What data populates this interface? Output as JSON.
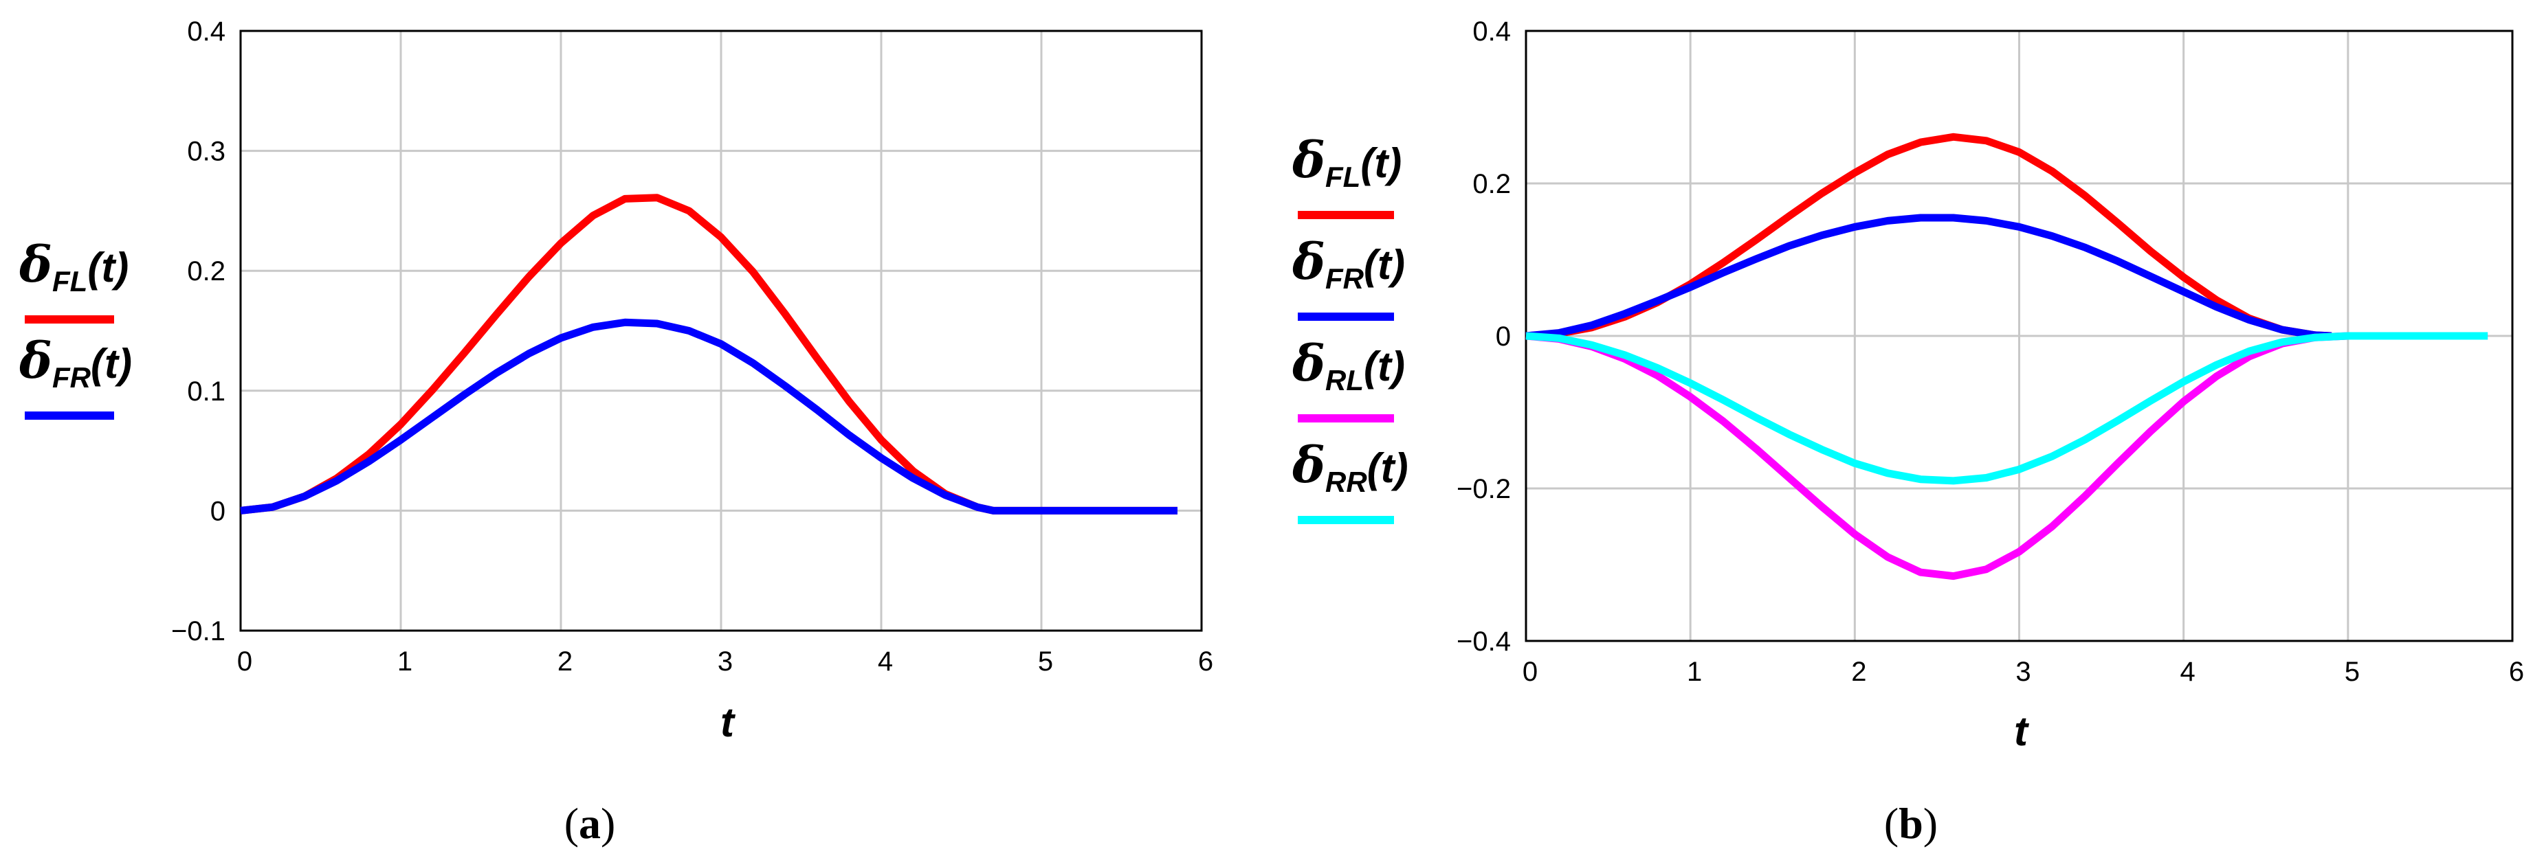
{
  "chart_data": [
    {
      "type": "line",
      "caption_letter": "a",
      "xlabel": "t",
      "xlim": [
        0,
        6
      ],
      "ylim": [
        -0.1,
        0.4
      ],
      "xticks": [
        "0",
        "1",
        "2",
        "3",
        "4",
        "5",
        "6"
      ],
      "yticks": [
        "−0.1",
        "0",
        "0.1",
        "0.2",
        "0.3",
        "0.4"
      ],
      "grid": true,
      "legend_position": "left",
      "series": [
        {
          "name": "δFL(t)",
          "symbol": "δ",
          "sub": "FL",
          "arg": "(t)",
          "color": "#ff0000",
          "x": [
            0,
            0.2,
            0.4,
            0.6,
            0.8,
            1.0,
            1.2,
            1.4,
            1.6,
            1.8,
            2.0,
            2.2,
            2.4,
            2.6,
            2.8,
            3.0,
            3.2,
            3.4,
            3.6,
            3.8,
            4.0,
            4.2,
            4.4,
            4.6,
            4.7,
            5.0,
            5.5,
            5.85
          ],
          "y": [
            0,
            0.003,
            0.012,
            0.027,
            0.047,
            0.072,
            0.101,
            0.132,
            0.164,
            0.195,
            0.223,
            0.246,
            0.26,
            0.261,
            0.25,
            0.228,
            0.199,
            0.164,
            0.127,
            0.091,
            0.059,
            0.033,
            0.014,
            0.003,
            0,
            0,
            0,
            0
          ]
        },
        {
          "name": "δFR(t)",
          "symbol": "δ",
          "sub": "FR",
          "arg": "(t)",
          "color": "#0000ff",
          "x": [
            0,
            0.2,
            0.4,
            0.6,
            0.8,
            1.0,
            1.2,
            1.4,
            1.6,
            1.8,
            2.0,
            2.2,
            2.4,
            2.6,
            2.8,
            3.0,
            3.2,
            3.4,
            3.6,
            3.8,
            4.0,
            4.2,
            4.4,
            4.6,
            4.7,
            5.0,
            5.5,
            5.85
          ],
          "y": [
            0,
            0.003,
            0.012,
            0.025,
            0.041,
            0.059,
            0.078,
            0.097,
            0.115,
            0.131,
            0.144,
            0.153,
            0.157,
            0.156,
            0.15,
            0.139,
            0.123,
            0.104,
            0.084,
            0.063,
            0.044,
            0.027,
            0.013,
            0.003,
            0,
            0,
            0,
            0
          ]
        }
      ]
    },
    {
      "type": "line",
      "caption_letter": "b",
      "xlabel": "t",
      "xlim": [
        0,
        6
      ],
      "ylim": [
        -0.4,
        0.4
      ],
      "xticks": [
        "0",
        "1",
        "2",
        "3",
        "4",
        "5",
        "6"
      ],
      "yticks": [
        "−0.4",
        "−0.2",
        "0",
        "0.2",
        "0.4"
      ],
      "grid": true,
      "legend_position": "left",
      "series": [
        {
          "name": "δFL(t)",
          "symbol": "δ",
          "sub": "FL",
          "arg": "(t)",
          "color": "#ff0000",
          "x": [
            0,
            0.2,
            0.4,
            0.6,
            0.8,
            1.0,
            1.2,
            1.4,
            1.6,
            1.8,
            2.0,
            2.2,
            2.4,
            2.6,
            2.8,
            3.0,
            3.2,
            3.4,
            3.6,
            3.8,
            4.0,
            4.2,
            4.4,
            4.6,
            4.8,
            4.9
          ],
          "y": [
            0,
            0.003,
            0.011,
            0.025,
            0.044,
            0.068,
            0.096,
            0.126,
            0.157,
            0.187,
            0.214,
            0.238,
            0.254,
            0.261,
            0.256,
            0.241,
            0.216,
            0.184,
            0.148,
            0.111,
            0.077,
            0.047,
            0.023,
            0.008,
            0.001,
            0
          ]
        },
        {
          "name": "δFR(t)",
          "symbol": "δ",
          "sub": "FR",
          "arg": "(t)",
          "color": "#0000ff",
          "x": [
            0,
            0.2,
            0.4,
            0.6,
            0.8,
            1.0,
            1.2,
            1.4,
            1.6,
            1.8,
            2.0,
            2.2,
            2.4,
            2.6,
            2.8,
            3.0,
            3.2,
            3.4,
            3.6,
            3.8,
            4.0,
            4.2,
            4.4,
            4.6,
            4.8,
            4.9
          ],
          "y": [
            0,
            0.004,
            0.014,
            0.029,
            0.046,
            0.064,
            0.083,
            0.101,
            0.118,
            0.132,
            0.143,
            0.151,
            0.155,
            0.155,
            0.151,
            0.143,
            0.131,
            0.116,
            0.098,
            0.078,
            0.058,
            0.038,
            0.021,
            0.008,
            0.001,
            0
          ]
        },
        {
          "name": "δRL(t)",
          "symbol": "δ",
          "sub": "RL",
          "arg": "(t)",
          "color": "#ff00ff",
          "x": [
            0,
            0.2,
            0.4,
            0.6,
            0.8,
            1.0,
            1.2,
            1.4,
            1.6,
            1.8,
            2.0,
            2.2,
            2.4,
            2.6,
            2.8,
            3.0,
            3.2,
            3.4,
            3.6,
            3.8,
            4.0,
            4.2,
            4.4,
            4.6,
            4.8,
            5.0,
            5.5,
            5.85
          ],
          "y": [
            0,
            -0.004,
            -0.014,
            -0.03,
            -0.052,
            -0.08,
            -0.112,
            -0.148,
            -0.186,
            -0.224,
            -0.26,
            -0.29,
            -0.31,
            -0.315,
            -0.306,
            -0.283,
            -0.25,
            -0.21,
            -0.167,
            -0.125,
            -0.086,
            -0.053,
            -0.027,
            -0.01,
            -0.002,
            0,
            0,
            0
          ]
        },
        {
          "name": "δRR(t)",
          "symbol": "δ",
          "sub": "RR",
          "arg": "(t)",
          "color": "#00ffff",
          "x": [
            0,
            0.2,
            0.4,
            0.6,
            0.8,
            1.0,
            1.2,
            1.4,
            1.6,
            1.8,
            2.0,
            2.2,
            2.4,
            2.6,
            2.8,
            3.0,
            3.2,
            3.4,
            3.6,
            3.8,
            4.0,
            4.2,
            4.4,
            4.6,
            4.8,
            5.0,
            5.5,
            5.85
          ],
          "y": [
            0,
            -0.003,
            -0.012,
            -0.025,
            -0.042,
            -0.062,
            -0.084,
            -0.107,
            -0.129,
            -0.149,
            -0.167,
            -0.18,
            -0.188,
            -0.19,
            -0.186,
            -0.175,
            -0.158,
            -0.136,
            -0.111,
            -0.085,
            -0.06,
            -0.038,
            -0.02,
            -0.008,
            -0.002,
            0,
            0,
            0
          ]
        }
      ]
    }
  ]
}
